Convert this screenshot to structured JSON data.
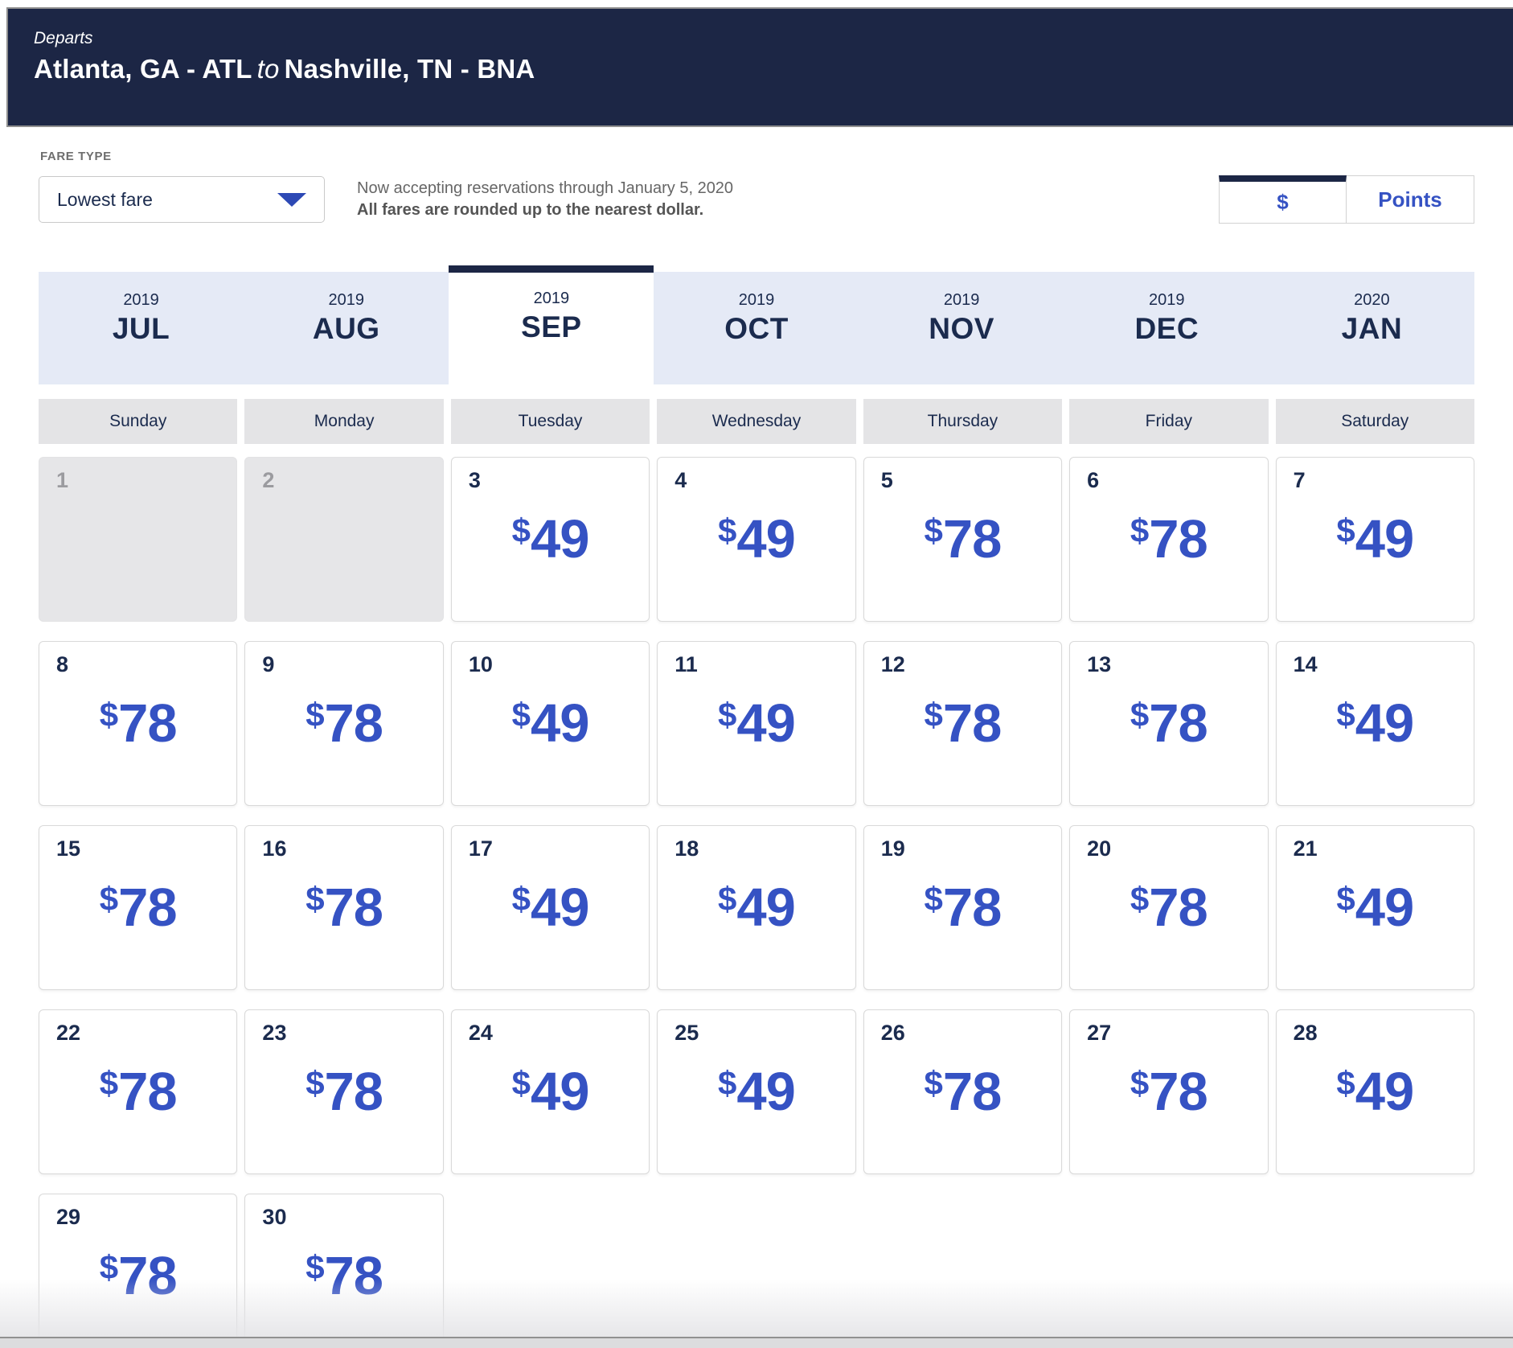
{
  "header": {
    "departs_label": "Departs",
    "origin": "Atlanta, GA - ATL",
    "to_word": "to",
    "destination": "Nashville, TN - BNA"
  },
  "fare_type": {
    "label": "FARE TYPE",
    "selected_option": "Lowest fare"
  },
  "notice": {
    "line1": "Now accepting reservations through January 5, 2020",
    "line2": "All fares are rounded up to the nearest dollar."
  },
  "currency_toggle": {
    "dollar_label": "$",
    "points_label": "Points",
    "active": "dollar"
  },
  "month_tabs": [
    {
      "year": "2019",
      "month": "JUL",
      "active": false
    },
    {
      "year": "2019",
      "month": "AUG",
      "active": false
    },
    {
      "year": "2019",
      "month": "SEP",
      "active": true
    },
    {
      "year": "2019",
      "month": "OCT",
      "active": false
    },
    {
      "year": "2019",
      "month": "NOV",
      "active": false
    },
    {
      "year": "2019",
      "month": "DEC",
      "active": false
    },
    {
      "year": "2020",
      "month": "JAN",
      "active": false
    }
  ],
  "weekday_headers": [
    "Sunday",
    "Monday",
    "Tuesday",
    "Wednesday",
    "Thursday",
    "Friday",
    "Saturday"
  ],
  "calendar": {
    "month_label": "SEP 2019",
    "price_prefix": "$",
    "cells": [
      {
        "day": "1",
        "disabled": true
      },
      {
        "day": "2",
        "disabled": true
      },
      {
        "day": "3",
        "price": "49"
      },
      {
        "day": "4",
        "price": "49"
      },
      {
        "day": "5",
        "price": "78"
      },
      {
        "day": "6",
        "price": "78"
      },
      {
        "day": "7",
        "price": "49"
      },
      {
        "day": "8",
        "price": "78"
      },
      {
        "day": "9",
        "price": "78"
      },
      {
        "day": "10",
        "price": "49"
      },
      {
        "day": "11",
        "price": "49"
      },
      {
        "day": "12",
        "price": "78"
      },
      {
        "day": "13",
        "price": "78"
      },
      {
        "day": "14",
        "price": "49"
      },
      {
        "day": "15",
        "price": "78"
      },
      {
        "day": "16",
        "price": "78"
      },
      {
        "day": "17",
        "price": "49"
      },
      {
        "day": "18",
        "price": "49"
      },
      {
        "day": "19",
        "price": "78"
      },
      {
        "day": "20",
        "price": "78"
      },
      {
        "day": "21",
        "price": "49"
      },
      {
        "day": "22",
        "price": "78"
      },
      {
        "day": "23",
        "price": "78"
      },
      {
        "day": "24",
        "price": "49"
      },
      {
        "day": "25",
        "price": "49"
      },
      {
        "day": "26",
        "price": "78"
      },
      {
        "day": "27",
        "price": "78"
      },
      {
        "day": "28",
        "price": "49"
      },
      {
        "day": "29",
        "price": "78"
      },
      {
        "day": "30",
        "price": "78"
      }
    ]
  },
  "colors": {
    "header_navy": "#1c2645",
    "text_navy": "#1b2b4e",
    "price_blue": "#3552c3",
    "inactive_tab_bg": "#e5eaf6",
    "weekday_bg": "#e4e4e6",
    "disabled_cell_bg": "#e6e6e8"
  }
}
